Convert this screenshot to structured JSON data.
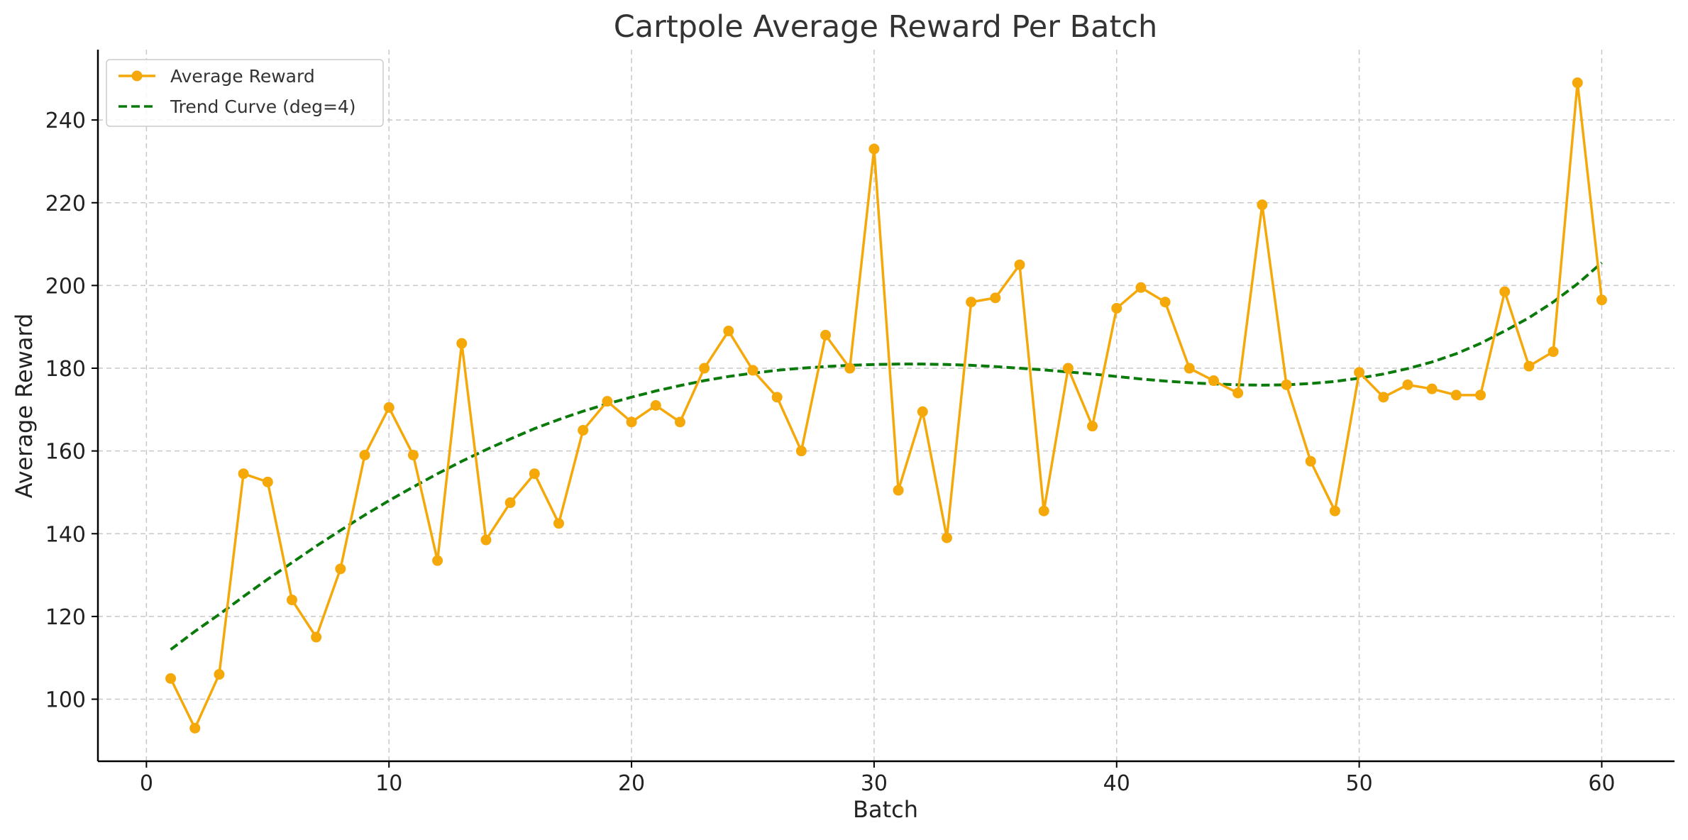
{
  "chart_data": {
    "type": "line",
    "title": "Cartpole Average Reward Per Batch",
    "xlabel": "Batch",
    "ylabel": "Average Reward",
    "xlim": [
      -2,
      63
    ],
    "ylim": [
      85,
      257
    ],
    "xticks": [
      0,
      10,
      20,
      30,
      40,
      50,
      60
    ],
    "yticks": [
      100,
      120,
      140,
      160,
      180,
      200,
      220,
      240
    ],
    "grid": true,
    "legend_position": "top-left",
    "series": [
      {
        "name": "Average Reward",
        "style": "line-with-markers",
        "color": "#f5a80a",
        "x": [
          1,
          2,
          3,
          4,
          5,
          6,
          7,
          8,
          9,
          10,
          11,
          12,
          13,
          14,
          15,
          16,
          17,
          18,
          19,
          20,
          21,
          22,
          23,
          24,
          25,
          26,
          27,
          28,
          29,
          30,
          31,
          32,
          33,
          34,
          35,
          36,
          37,
          38,
          39,
          40,
          41,
          42,
          43,
          44,
          45,
          46,
          47,
          48,
          49,
          50,
          51,
          52,
          53,
          54,
          55,
          56,
          57,
          58,
          59,
          60
        ],
        "values": [
          105.0,
          93.0,
          106.0,
          154.5,
          152.5,
          124.0,
          115.0,
          131.5,
          159.0,
          170.5,
          159.0,
          133.5,
          186.0,
          138.5,
          147.5,
          154.5,
          142.5,
          165.0,
          172.0,
          167.0,
          171.0,
          167.0,
          180.0,
          189.0,
          179.5,
          173.0,
          160.0,
          188.0,
          180.0,
          233.0,
          150.5,
          169.5,
          139.0,
          196.0,
          197.0,
          205.0,
          145.5,
          180.0,
          166.0,
          194.5,
          199.5,
          196.0,
          180.0,
          177.0,
          174.0,
          219.5,
          176.0,
          157.5,
          145.5,
          179.0,
          173.0,
          176.0,
          175.0,
          173.5,
          173.5,
          198.5,
          180.5,
          184.0,
          249.0,
          196.5
        ]
      },
      {
        "name": "Trend Curve (deg=4)",
        "style": "dashed-line",
        "color": "#0a7a0a",
        "x": [
          1,
          2,
          3,
          4,
          5,
          6,
          7,
          8,
          9,
          10,
          11,
          12,
          13,
          14,
          15,
          16,
          17,
          18,
          19,
          20,
          21,
          22,
          23,
          24,
          25,
          26,
          27,
          28,
          29,
          30,
          31,
          32,
          33,
          34,
          35,
          36,
          37,
          38,
          39,
          40,
          41,
          42,
          43,
          44,
          45,
          46,
          47,
          48,
          49,
          50,
          51,
          52,
          53,
          54,
          55,
          56,
          57,
          58,
          59,
          60
        ],
        "values": [
          112.0,
          116.4,
          120.5,
          124.8,
          129.0,
          133.0,
          137.0,
          140.8,
          144.5,
          148.0,
          151.3,
          154.5,
          157.5,
          160.3,
          162.9,
          165.4,
          167.6,
          169.6,
          171.4,
          173.0,
          174.5,
          175.8,
          177.0,
          178.0,
          178.8,
          179.5,
          180.0,
          180.4,
          180.7,
          180.9,
          181.0,
          181.0,
          180.9,
          180.7,
          180.4,
          180.0,
          179.6,
          179.1,
          178.6,
          178.0,
          177.4,
          176.9,
          176.5,
          176.2,
          176.0,
          175.9,
          176.0,
          176.3,
          176.8,
          177.6,
          178.6,
          179.9,
          181.5,
          183.5,
          186.0,
          189.0,
          192.2,
          196.0,
          200.4,
          205.5
        ]
      }
    ]
  }
}
